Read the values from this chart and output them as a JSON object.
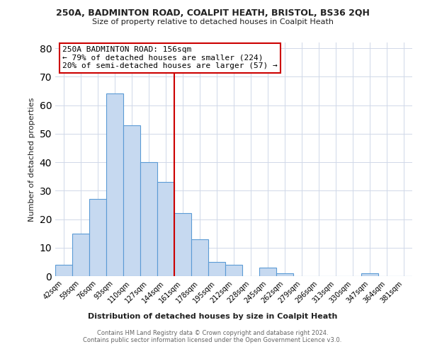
{
  "title1": "250A, BADMINTON ROAD, COALPIT HEATH, BRISTOL, BS36 2QH",
  "title2": "Size of property relative to detached houses in Coalpit Heath",
  "xlabel": "Distribution of detached houses by size in Coalpit Heath",
  "ylabel": "Number of detached properties",
  "bin_labels": [
    "42sqm",
    "59sqm",
    "76sqm",
    "93sqm",
    "110sqm",
    "127sqm",
    "144sqm",
    "161sqm",
    "178sqm",
    "195sqm",
    "212sqm",
    "228sqm",
    "245sqm",
    "262sqm",
    "279sqm",
    "296sqm",
    "313sqm",
    "330sqm",
    "347sqm",
    "364sqm",
    "381sqm"
  ],
  "bar_values": [
    4,
    15,
    27,
    64,
    53,
    40,
    33,
    22,
    13,
    5,
    4,
    0,
    3,
    1,
    0,
    0,
    0,
    0,
    1,
    0,
    0
  ],
  "bar_color": "#c6d9f0",
  "bar_edge_color": "#5b9bd5",
  "vline_x_index": 7,
  "vline_color": "#cc0000",
  "annotation_title": "250A BADMINTON ROAD: 156sqm",
  "annotation_line1": "← 79% of detached houses are smaller (224)",
  "annotation_line2": "20% of semi-detached houses are larger (57) →",
  "annotation_box_color": "#ffffff",
  "annotation_box_edge": "#cc0000",
  "ylim": [
    0,
    82
  ],
  "yticks": [
    0,
    10,
    20,
    30,
    40,
    50,
    60,
    70,
    80
  ],
  "footer1": "Contains HM Land Registry data © Crown copyright and database right 2024.",
  "footer2": "Contains public sector information licensed under the Open Government Licence v3.0.",
  "bg_color": "#ffffff",
  "grid_color": "#d0d8e8"
}
